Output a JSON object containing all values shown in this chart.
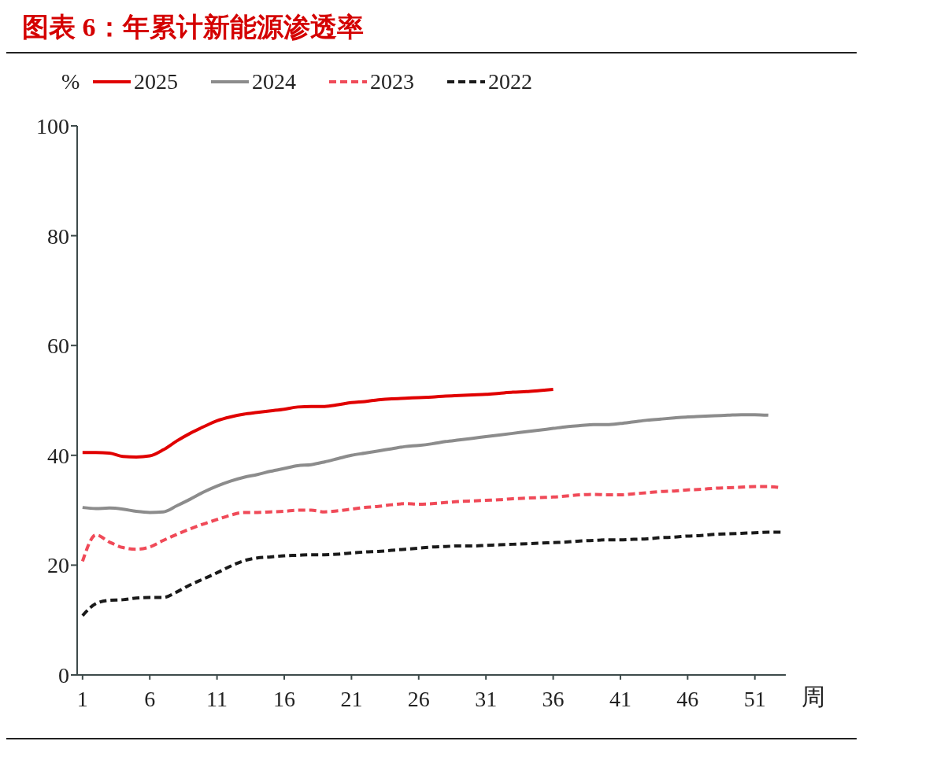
{
  "chart_data": {
    "type": "line",
    "title": "图表 6：年累计新能源渗透率",
    "xlabel": "周",
    "ylabel": "%",
    "xlim": [
      0.6,
      53.3
    ],
    "xticks": [
      1,
      6,
      11,
      16,
      21,
      26,
      31,
      36,
      41,
      46,
      51
    ],
    "ylim": [
      0,
      100
    ],
    "yticks": [
      0,
      20,
      40,
      60,
      80,
      100
    ],
    "legend": "top",
    "marker": "none",
    "series": [
      {
        "name": "2025",
        "color": "#e00000",
        "line_style": "solid",
        "x": [
          1,
          2,
          3,
          4,
          5,
          6,
          7,
          8,
          9,
          10,
          11,
          12,
          13,
          14,
          15,
          16,
          17,
          18,
          19,
          20,
          21,
          22,
          23,
          24,
          25,
          26,
          27,
          28,
          29,
          30,
          31,
          32,
          33,
          34,
          35,
          36
        ],
        "values": [
          40.5,
          40.5,
          40.4,
          39.8,
          39.7,
          39.9,
          41,
          42.6,
          44,
          45.2,
          46.3,
          47,
          47.5,
          47.8,
          48.1,
          48.4,
          48.8,
          48.9,
          48.9,
          49.2,
          49.6,
          49.8,
          50.1,
          50.3,
          50.4,
          50.5,
          50.6,
          50.8,
          50.9,
          51,
          51.1,
          51.3,
          51.5,
          51.6,
          51.8,
          52
        ]
      },
      {
        "name": "2024",
        "color": "#8c8c8c",
        "line_style": "solid",
        "x": [
          1,
          2,
          3,
          4,
          5,
          6,
          7,
          8,
          9,
          10,
          11,
          12,
          13,
          14,
          15,
          16,
          17,
          18,
          19,
          20,
          21,
          22,
          23,
          24,
          25,
          26,
          27,
          28,
          29,
          30,
          31,
          32,
          33,
          34,
          35,
          36,
          37,
          38,
          39,
          40,
          41,
          42,
          43,
          44,
          45,
          46,
          47,
          48,
          49,
          50,
          51,
          52
        ],
        "values": [
          30.5,
          30.3,
          30.4,
          30.2,
          29.8,
          29.6,
          29.7,
          30.8,
          32,
          33.3,
          34.4,
          35.3,
          36,
          36.5,
          37.1,
          37.6,
          38.1,
          38.3,
          38.8,
          39.4,
          40,
          40.4,
          40.8,
          41.2,
          41.6,
          41.8,
          42.1,
          42.5,
          42.8,
          43.1,
          43.4,
          43.7,
          44,
          44.3,
          44.6,
          44.9,
          45.2,
          45.4,
          45.6,
          45.6,
          45.8,
          46.1,
          46.4,
          46.6,
          46.8,
          47,
          47.1,
          47.2,
          47.3,
          47.4,
          47.4,
          47.3
        ]
      },
      {
        "name": "2023",
        "color": "#f04a58",
        "line_style": "dashed",
        "x": [
          1,
          2,
          3,
          4,
          5,
          6,
          7,
          8,
          9,
          10,
          11,
          12,
          13,
          14,
          15,
          16,
          17,
          18,
          19,
          20,
          21,
          22,
          23,
          24,
          25,
          26,
          27,
          28,
          29,
          30,
          31,
          32,
          33,
          34,
          35,
          36,
          37,
          38,
          39,
          40,
          41,
          42,
          43,
          44,
          45,
          46,
          47,
          48,
          49,
          50,
          51,
          52,
          53
        ],
        "values": [
          20.7,
          25.5,
          24.2,
          23.2,
          22.9,
          23.3,
          24.5,
          25.6,
          26.6,
          27.5,
          28.3,
          29.1,
          29.6,
          29.6,
          29.7,
          29.8,
          30,
          30,
          29.7,
          29.9,
          30.2,
          30.5,
          30.7,
          31,
          31.2,
          31.1,
          31.2,
          31.4,
          31.6,
          31.7,
          31.8,
          31.9,
          32.1,
          32.2,
          32.3,
          32.4,
          32.6,
          32.8,
          32.9,
          32.8,
          32.8,
          33,
          33.2,
          33.4,
          33.5,
          33.7,
          33.8,
          34,
          34.1,
          34.2,
          34.3,
          34.3,
          34.1
        ]
      },
      {
        "name": "2022",
        "color": "#1a1a1a",
        "line_style": "dashed",
        "x": [
          1,
          2,
          3,
          4,
          5,
          6,
          7,
          8,
          9,
          10,
          11,
          12,
          13,
          14,
          15,
          16,
          17,
          18,
          19,
          20,
          21,
          22,
          23,
          24,
          25,
          26,
          27,
          28,
          29,
          30,
          31,
          32,
          33,
          34,
          35,
          36,
          37,
          38,
          39,
          40,
          41,
          42,
          43,
          44,
          45,
          46,
          47,
          48,
          49,
          50,
          51,
          52,
          53
        ],
        "values": [
          10.8,
          13,
          13.6,
          13.7,
          14,
          14.1,
          14.1,
          15.1,
          16.4,
          17.5,
          18.6,
          19.8,
          20.8,
          21.3,
          21.5,
          21.7,
          21.8,
          21.9,
          21.9,
          22,
          22.2,
          22.4,
          22.5,
          22.7,
          22.9,
          23.1,
          23.3,
          23.4,
          23.5,
          23.5,
          23.6,
          23.7,
          23.8,
          23.9,
          24,
          24.1,
          24.2,
          24.4,
          24.5,
          24.6,
          24.6,
          24.7,
          24.8,
          25,
          25.1,
          25.3,
          25.4,
          25.6,
          25.7,
          25.8,
          25.9,
          26,
          26
        ]
      }
    ]
  }
}
